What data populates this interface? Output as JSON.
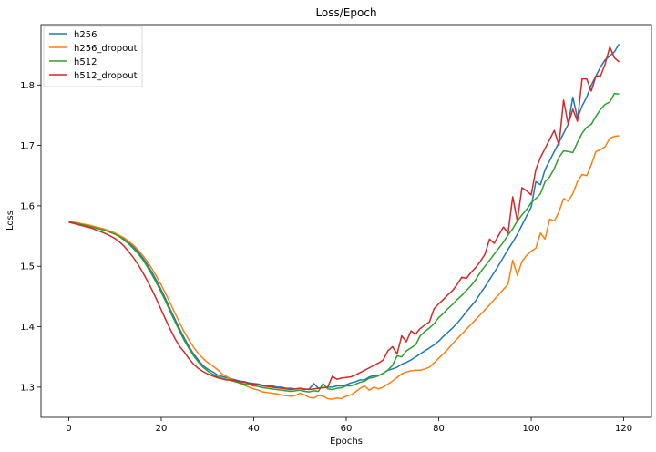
{
  "chart_data": {
    "type": "line",
    "title": "Loss/Epoch",
    "xlabel": "Epochs",
    "ylabel": "Loss",
    "xlim": [
      -6,
      126
    ],
    "ylim": [
      1.25,
      1.9
    ],
    "xticks": [
      0,
      20,
      40,
      60,
      80,
      100,
      120
    ],
    "yticks": [
      1.3,
      1.4,
      1.5,
      1.6,
      1.7,
      1.8
    ],
    "grid": false,
    "legend_position": "top-left",
    "x": [
      0,
      1,
      2,
      3,
      4,
      5,
      6,
      7,
      8,
      9,
      10,
      11,
      12,
      13,
      14,
      15,
      16,
      17,
      18,
      19,
      20,
      21,
      22,
      23,
      24,
      25,
      26,
      27,
      28,
      29,
      30,
      31,
      32,
      33,
      34,
      35,
      36,
      37,
      38,
      39,
      40,
      41,
      42,
      43,
      44,
      45,
      46,
      47,
      48,
      49,
      50,
      51,
      52,
      53,
      54,
      55,
      56,
      57,
      58,
      59,
      60,
      61,
      62,
      63,
      64,
      65,
      66,
      67,
      68,
      69,
      70,
      71,
      72,
      73,
      74,
      75,
      76,
      77,
      78,
      79,
      80,
      81,
      82,
      83,
      84,
      85,
      86,
      87,
      88,
      89,
      90,
      91,
      92,
      93,
      94,
      95,
      96,
      97,
      98,
      99,
      100,
      101,
      102,
      103,
      104,
      105,
      106,
      107,
      108,
      109,
      110,
      111,
      112,
      113,
      114,
      115,
      116,
      117,
      118,
      119
    ],
    "series": [
      {
        "name": "h256",
        "color": "#1f77b4",
        "values": [
          1.574,
          1.572,
          1.571,
          1.569,
          1.568,
          1.566,
          1.564,
          1.562,
          1.56,
          1.557,
          1.554,
          1.55,
          1.545,
          1.539,
          1.532,
          1.524,
          1.514,
          1.503,
          1.49,
          1.476,
          1.461,
          1.445,
          1.428,
          1.412,
          1.396,
          1.381,
          1.367,
          1.355,
          1.345,
          1.336,
          1.33,
          1.326,
          1.321,
          1.318,
          1.316,
          1.314,
          1.312,
          1.31,
          1.309,
          1.307,
          1.306,
          1.305,
          1.303,
          1.302,
          1.302,
          1.3,
          1.3,
          1.298,
          1.298,
          1.297,
          1.298,
          1.296,
          1.297,
          1.306,
          1.298,
          1.299,
          1.3,
          1.3,
          1.302,
          1.302,
          1.304,
          1.307,
          1.309,
          1.312,
          1.312,
          1.317,
          1.319,
          1.319,
          1.323,
          1.328,
          1.33,
          1.333,
          1.338,
          1.341,
          1.345,
          1.35,
          1.355,
          1.36,
          1.365,
          1.37,
          1.376,
          1.384,
          1.391,
          1.398,
          1.406,
          1.415,
          1.425,
          1.434,
          1.443,
          1.455,
          1.466,
          1.478,
          1.49,
          1.502,
          1.515,
          1.528,
          1.54,
          1.553,
          1.568,
          1.583,
          1.598,
          1.64,
          1.635,
          1.66,
          1.675,
          1.69,
          1.705,
          1.72,
          1.735,
          1.78,
          1.745,
          1.765,
          1.78,
          1.8,
          1.815,
          1.83,
          1.842,
          1.848,
          1.855,
          1.868
        ]
      },
      {
        "name": "h256_dropout",
        "color": "#ff7f0e",
        "values": [
          1.575,
          1.573,
          1.572,
          1.57,
          1.569,
          1.567,
          1.565,
          1.563,
          1.561,
          1.558,
          1.555,
          1.551,
          1.547,
          1.541,
          1.535,
          1.527,
          1.518,
          1.508,
          1.496,
          1.483,
          1.469,
          1.454,
          1.438,
          1.422,
          1.406,
          1.391,
          1.378,
          1.366,
          1.356,
          1.348,
          1.341,
          1.336,
          1.33,
          1.323,
          1.318,
          1.314,
          1.31,
          1.306,
          1.303,
          1.3,
          1.297,
          1.295,
          1.292,
          1.291,
          1.29,
          1.289,
          1.287,
          1.286,
          1.285,
          1.286,
          1.29,
          1.287,
          1.283,
          1.282,
          1.286,
          1.285,
          1.281,
          1.28,
          1.282,
          1.281,
          1.285,
          1.287,
          1.292,
          1.298,
          1.302,
          1.295,
          1.3,
          1.297,
          1.3,
          1.305,
          1.31,
          1.316,
          1.322,
          1.325,
          1.327,
          1.328,
          1.328,
          1.33,
          1.333,
          1.34,
          1.348,
          1.355,
          1.363,
          1.372,
          1.38,
          1.388,
          1.396,
          1.404,
          1.412,
          1.42,
          1.428,
          1.436,
          1.445,
          1.453,
          1.462,
          1.47,
          1.51,
          1.485,
          1.508,
          1.518,
          1.525,
          1.53,
          1.555,
          1.545,
          1.578,
          1.575,
          1.59,
          1.612,
          1.608,
          1.62,
          1.64,
          1.652,
          1.65,
          1.668,
          1.69,
          1.693,
          1.698,
          1.712,
          1.715,
          1.716
        ]
      },
      {
        "name": "h512",
        "color": "#2ca02c",
        "values": [
          1.574,
          1.572,
          1.57,
          1.569,
          1.567,
          1.565,
          1.563,
          1.561,
          1.559,
          1.556,
          1.553,
          1.549,
          1.543,
          1.537,
          1.529,
          1.521,
          1.511,
          1.499,
          1.486,
          1.472,
          1.457,
          1.441,
          1.424,
          1.408,
          1.392,
          1.377,
          1.364,
          1.352,
          1.342,
          1.333,
          1.327,
          1.322,
          1.318,
          1.315,
          1.313,
          1.311,
          1.309,
          1.307,
          1.305,
          1.304,
          1.302,
          1.301,
          1.299,
          1.298,
          1.297,
          1.296,
          1.295,
          1.294,
          1.293,
          1.294,
          1.295,
          1.293,
          1.292,
          1.294,
          1.293,
          1.306,
          1.297,
          1.296,
          1.298,
          1.299,
          1.302,
          1.302,
          1.305,
          1.308,
          1.31,
          1.315,
          1.316,
          1.319,
          1.323,
          1.328,
          1.336,
          1.352,
          1.35,
          1.36,
          1.365,
          1.37,
          1.385,
          1.392,
          1.398,
          1.405,
          1.415,
          1.422,
          1.43,
          1.437,
          1.445,
          1.452,
          1.46,
          1.468,
          1.478,
          1.49,
          1.5,
          1.51,
          1.52,
          1.53,
          1.54,
          1.552,
          1.562,
          1.575,
          1.585,
          1.594,
          1.605,
          1.612,
          1.62,
          1.64,
          1.648,
          1.662,
          1.68,
          1.691,
          1.69,
          1.688,
          1.705,
          1.72,
          1.73,
          1.735,
          1.748,
          1.76,
          1.768,
          1.772,
          1.786,
          1.785
        ]
      },
      {
        "name": "h512_dropout",
        "color": "#d62728",
        "values": [
          1.573,
          1.571,
          1.569,
          1.567,
          1.565,
          1.563,
          1.56,
          1.557,
          1.554,
          1.55,
          1.546,
          1.54,
          1.533,
          1.524,
          1.514,
          1.503,
          1.49,
          1.476,
          1.461,
          1.445,
          1.428,
          1.411,
          1.395,
          1.38,
          1.367,
          1.358,
          1.347,
          1.338,
          1.331,
          1.326,
          1.322,
          1.319,
          1.316,
          1.314,
          1.312,
          1.312,
          1.311,
          1.309,
          1.308,
          1.306,
          1.305,
          1.304,
          1.302,
          1.301,
          1.3,
          1.299,
          1.298,
          1.297,
          1.296,
          1.297,
          1.298,
          1.297,
          1.296,
          1.297,
          1.298,
          1.299,
          1.3,
          1.318,
          1.313,
          1.315,
          1.316,
          1.317,
          1.32,
          1.324,
          1.328,
          1.332,
          1.336,
          1.34,
          1.345,
          1.36,
          1.367,
          1.355,
          1.385,
          1.375,
          1.393,
          1.388,
          1.397,
          1.403,
          1.408,
          1.43,
          1.438,
          1.445,
          1.453,
          1.46,
          1.47,
          1.482,
          1.48,
          1.49,
          1.498,
          1.508,
          1.52,
          1.545,
          1.538,
          1.552,
          1.565,
          1.555,
          1.615,
          1.575,
          1.63,
          1.625,
          1.618,
          1.66,
          1.68,
          1.695,
          1.71,
          1.725,
          1.7,
          1.775,
          1.735,
          1.76,
          1.74,
          1.81,
          1.81,
          1.79,
          1.815,
          1.815,
          1.835,
          1.863,
          1.845,
          1.838
        ]
      }
    ]
  }
}
